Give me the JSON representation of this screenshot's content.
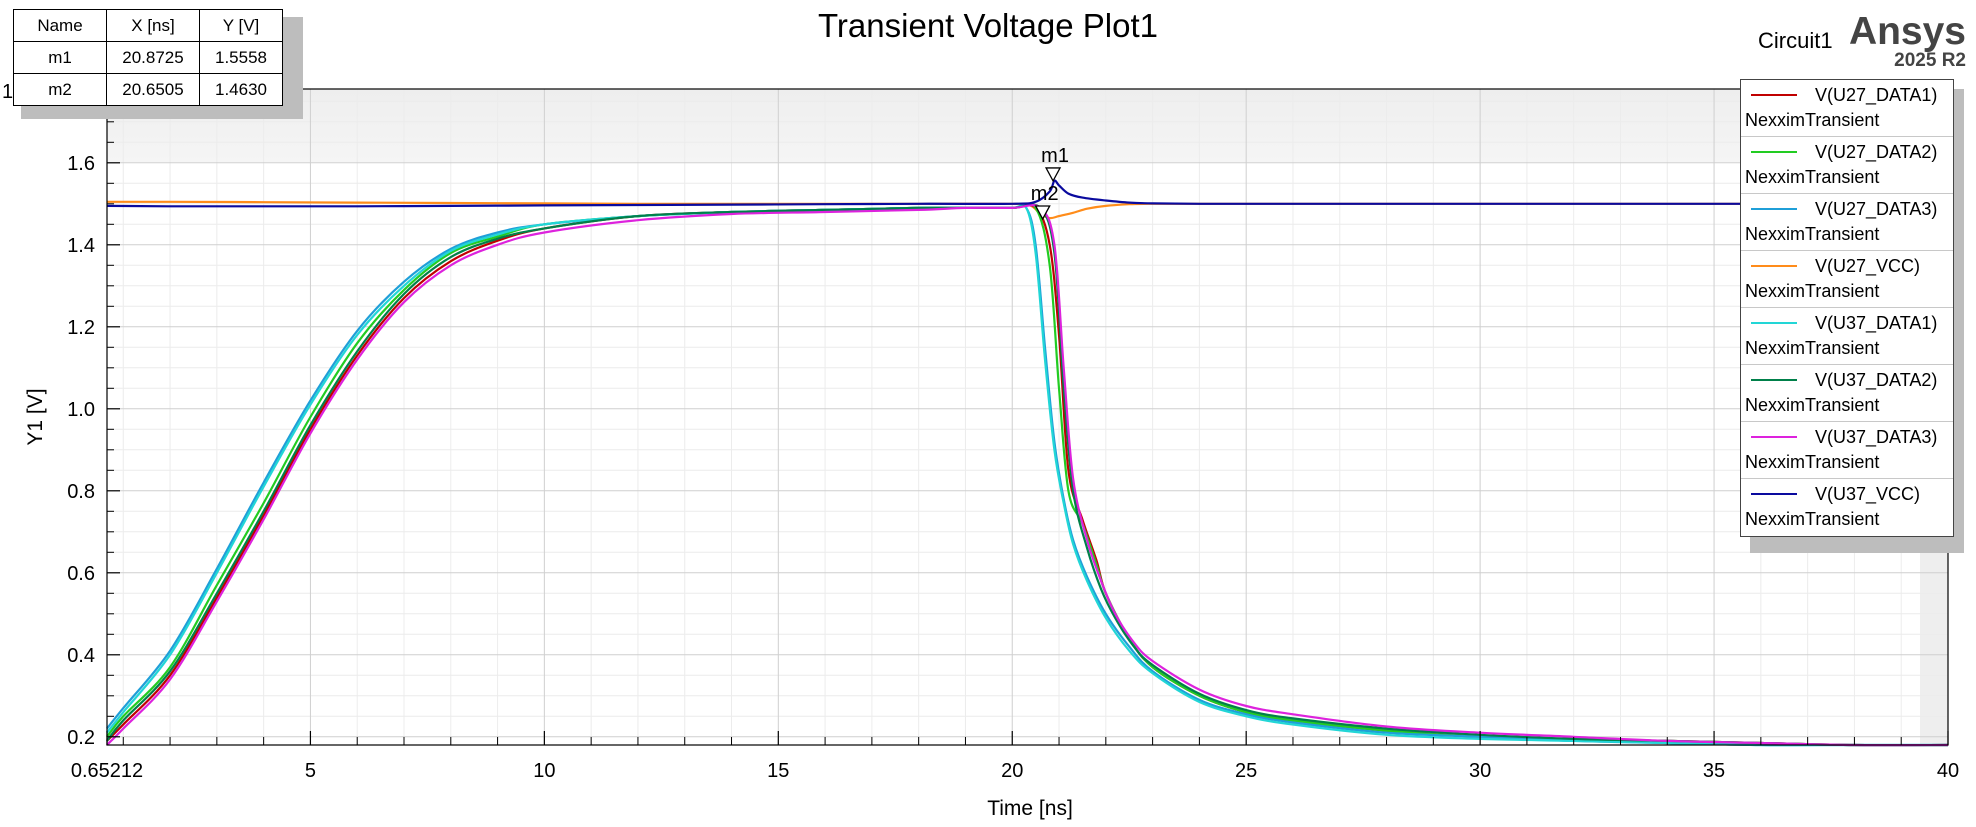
{
  "header": {
    "title": "Transient Voltage Plot1",
    "circuit": "Circuit1",
    "brand": "Ansys",
    "version": "2025 R2"
  },
  "marker_table": {
    "headers": [
      "Name",
      "X [ns]",
      "Y [V]"
    ],
    "rows": [
      [
        "m1",
        "20.8725",
        "1.5558"
      ],
      [
        "m2",
        "20.6505",
        "1.4630"
      ]
    ],
    "stray_digit": "1"
  },
  "markers": [
    {
      "name": "m1",
      "x": 20.8725,
      "y": 1.5558
    },
    {
      "name": "m2",
      "x": 20.6505,
      "y": 1.463
    }
  ],
  "legend": {
    "subtitle": "NexximTransient",
    "items": [
      {
        "label": "V(U27_DATA1)",
        "color": "#c00000"
      },
      {
        "label": "V(U27_DATA2)",
        "color": "#22cc22"
      },
      {
        "label": "V(U27_DATA3)",
        "color": "#1f9fd8"
      },
      {
        "label": "V(U27_VCC)",
        "color": "#ff8c1a"
      },
      {
        "label": "V(U37_DATA1)",
        "color": "#22d6d6"
      },
      {
        "label": "V(U37_DATA2)",
        "color": "#00804a"
      },
      {
        "label": "V(U37_DATA3)",
        "color": "#dd22dd"
      },
      {
        "label": "V(U37_VCC)",
        "color": "#0a0a9e"
      }
    ]
  },
  "chart_data": {
    "type": "line",
    "title": "Transient Voltage Plot1",
    "xlabel": "Time [ns]",
    "ylabel": "Y1 [V]",
    "xlim": [
      0.65212,
      40
    ],
    "ylim": [
      0.18,
      1.78
    ],
    "x_ticks": [
      "0.65212",
      "5",
      "10",
      "15",
      "20",
      "25",
      "30",
      "35",
      "40"
    ],
    "x_tick_values": [
      0.65212,
      5,
      10,
      15,
      20,
      25,
      30,
      35,
      40
    ],
    "y_ticks": [
      "0.2",
      "0.4",
      "0.6",
      "0.8",
      "1.0",
      "1.2",
      "1.4",
      "1.6"
    ],
    "y_tick_values": [
      0.2,
      0.4,
      0.6,
      0.8,
      1.0,
      1.2,
      1.4,
      1.6
    ],
    "grid": true,
    "legend_position": "right",
    "series": [
      {
        "name": "V(U27_DATA1)",
        "color": "#c00000",
        "x": [
          0.65,
          1,
          2,
          3,
          4,
          5,
          6,
          7,
          8,
          9,
          10,
          12,
          14,
          16,
          18,
          19,
          20,
          20.5,
          20.8,
          21.0,
          21.2,
          21.5,
          21.8,
          22,
          22.5,
          23,
          24,
          25,
          26,
          28,
          30,
          32,
          34,
          36,
          38,
          40
        ],
        "y": [
          0.19,
          0.23,
          0.35,
          0.54,
          0.74,
          0.95,
          1.13,
          1.27,
          1.36,
          1.41,
          1.44,
          1.47,
          1.48,
          1.485,
          1.49,
          1.49,
          1.49,
          1.49,
          1.4,
          1.18,
          0.85,
          0.73,
          0.63,
          0.55,
          0.44,
          0.37,
          0.3,
          0.26,
          0.24,
          0.215,
          0.2,
          0.195,
          0.19,
          0.185,
          0.18,
          0.18
        ]
      },
      {
        "name": "V(U27_DATA2)",
        "color": "#22cc22",
        "x": [
          0.65,
          1,
          2,
          3,
          4,
          5,
          6,
          7,
          8,
          9,
          10,
          12,
          14,
          16,
          18,
          19,
          20,
          20.5,
          20.8,
          21.0,
          21.2,
          21.5,
          21.8,
          22,
          22.5,
          23,
          24,
          25,
          26,
          28,
          30,
          32,
          34,
          36,
          38,
          40
        ],
        "y": [
          0.2,
          0.25,
          0.37,
          0.57,
          0.77,
          0.98,
          1.16,
          1.29,
          1.38,
          1.42,
          1.45,
          1.47,
          1.48,
          1.485,
          1.49,
          1.49,
          1.49,
          1.49,
          1.35,
          1.05,
          0.8,
          0.72,
          0.62,
          0.55,
          0.44,
          0.37,
          0.3,
          0.26,
          0.24,
          0.215,
          0.2,
          0.195,
          0.19,
          0.185,
          0.18,
          0.18
        ]
      },
      {
        "name": "V(U27_DATA3)",
        "color": "#1f9fd8",
        "x": [
          0.65,
          1,
          2,
          3,
          4,
          5,
          6,
          7,
          8,
          9,
          10,
          12,
          14,
          16,
          18,
          19,
          20,
          20.3,
          20.5,
          20.7,
          20.9,
          21.1,
          21.3,
          21.6,
          22,
          22.5,
          23,
          24,
          25,
          26,
          28,
          30,
          32,
          34,
          36,
          38,
          40
        ],
        "y": [
          0.22,
          0.27,
          0.41,
          0.61,
          0.82,
          1.02,
          1.19,
          1.31,
          1.39,
          1.43,
          1.45,
          1.47,
          1.48,
          1.485,
          1.49,
          1.49,
          1.49,
          1.49,
          1.4,
          1.15,
          0.92,
          0.78,
          0.68,
          0.59,
          0.5,
          0.42,
          0.36,
          0.29,
          0.255,
          0.235,
          0.21,
          0.2,
          0.19,
          0.185,
          0.18,
          0.18,
          0.18
        ]
      },
      {
        "name": "V(U27_VCC)",
        "color": "#ff8c1a",
        "x": [
          0.65,
          2,
          4,
          6,
          8,
          10,
          12,
          14,
          16,
          18,
          20,
          20.4,
          20.6,
          20.8,
          21.0,
          21.3,
          21.6,
          22,
          22.5,
          23,
          24,
          26,
          30,
          35,
          40
        ],
        "y": [
          1.505,
          1.505,
          1.504,
          1.503,
          1.502,
          1.501,
          1.5,
          1.5,
          1.5,
          1.5,
          1.5,
          1.495,
          1.475,
          1.465,
          1.47,
          1.478,
          1.488,
          1.495,
          1.499,
          1.5,
          1.5,
          1.5,
          1.5,
          1.5,
          1.5
        ]
      },
      {
        "name": "V(U37_DATA1)",
        "color": "#22d6d6",
        "x": [
          0.65,
          1,
          2,
          3,
          4,
          5,
          6,
          7,
          8,
          9,
          10,
          12,
          14,
          16,
          18,
          19,
          20,
          20.3,
          20.5,
          20.7,
          20.9,
          21.1,
          21.3,
          21.6,
          22,
          22.5,
          23,
          24,
          25,
          26,
          28,
          30,
          32,
          34,
          36,
          38,
          40
        ],
        "y": [
          0.21,
          0.26,
          0.4,
          0.6,
          0.81,
          1.01,
          1.18,
          1.3,
          1.385,
          1.425,
          1.45,
          1.47,
          1.48,
          1.485,
          1.49,
          1.49,
          1.49,
          1.49,
          1.38,
          1.12,
          0.9,
          0.77,
          0.67,
          0.58,
          0.49,
          0.41,
          0.355,
          0.285,
          0.25,
          0.23,
          0.205,
          0.195,
          0.19,
          0.185,
          0.18,
          0.18,
          0.18
        ]
      },
      {
        "name": "V(U37_DATA2)",
        "color": "#00804a",
        "x": [
          0.65,
          1,
          2,
          3,
          4,
          5,
          6,
          7,
          8,
          9,
          10,
          12,
          14,
          16,
          18,
          19,
          20,
          20.6,
          20.9,
          21.1,
          21.3,
          21.6,
          21.9,
          22.2,
          22.6,
          23,
          24,
          25,
          26,
          28,
          30,
          32,
          34,
          36,
          38,
          40
        ],
        "y": [
          0.19,
          0.24,
          0.36,
          0.55,
          0.75,
          0.96,
          1.14,
          1.28,
          1.37,
          1.415,
          1.44,
          1.47,
          1.48,
          1.485,
          1.49,
          1.49,
          1.49,
          1.49,
          1.38,
          1.05,
          0.8,
          0.66,
          0.56,
          0.49,
          0.42,
          0.375,
          0.305,
          0.265,
          0.245,
          0.22,
          0.205,
          0.195,
          0.19,
          0.185,
          0.18,
          0.18
        ]
      },
      {
        "name": "V(U37_DATA3)",
        "color": "#dd22dd",
        "x": [
          0.65,
          1,
          2,
          3,
          4,
          5,
          6,
          7,
          8,
          9,
          10,
          12,
          14,
          16,
          18,
          19,
          20,
          20.6,
          20.9,
          21.1,
          21.3,
          21.6,
          21.9,
          22.2,
          22.6,
          23,
          24,
          25,
          26,
          28,
          30,
          32,
          34,
          36,
          38,
          40
        ],
        "y": [
          0.18,
          0.22,
          0.34,
          0.53,
          0.73,
          0.94,
          1.12,
          1.26,
          1.35,
          1.4,
          1.43,
          1.46,
          1.475,
          1.48,
          1.485,
          1.49,
          1.49,
          1.49,
          1.4,
          1.1,
          0.83,
          0.68,
          0.58,
          0.5,
          0.43,
          0.385,
          0.315,
          0.275,
          0.255,
          0.225,
          0.21,
          0.2,
          0.19,
          0.185,
          0.18,
          0.18
        ]
      },
      {
        "name": "V(U37_VCC)",
        "color": "#0a0a9e",
        "x": [
          0.65,
          2,
          4,
          6,
          8,
          10,
          12,
          14,
          16,
          18,
          20,
          20.5,
          20.8,
          20.9,
          21.0,
          21.2,
          21.5,
          22,
          22.5,
          23,
          24,
          26,
          30,
          35,
          40
        ],
        "y": [
          1.495,
          1.494,
          1.494,
          1.494,
          1.495,
          1.496,
          1.497,
          1.498,
          1.499,
          1.5,
          1.5,
          1.505,
          1.53,
          1.556,
          1.545,
          1.525,
          1.515,
          1.508,
          1.503,
          1.501,
          1.5,
          1.5,
          1.5,
          1.5,
          1.5
        ]
      }
    ]
  }
}
